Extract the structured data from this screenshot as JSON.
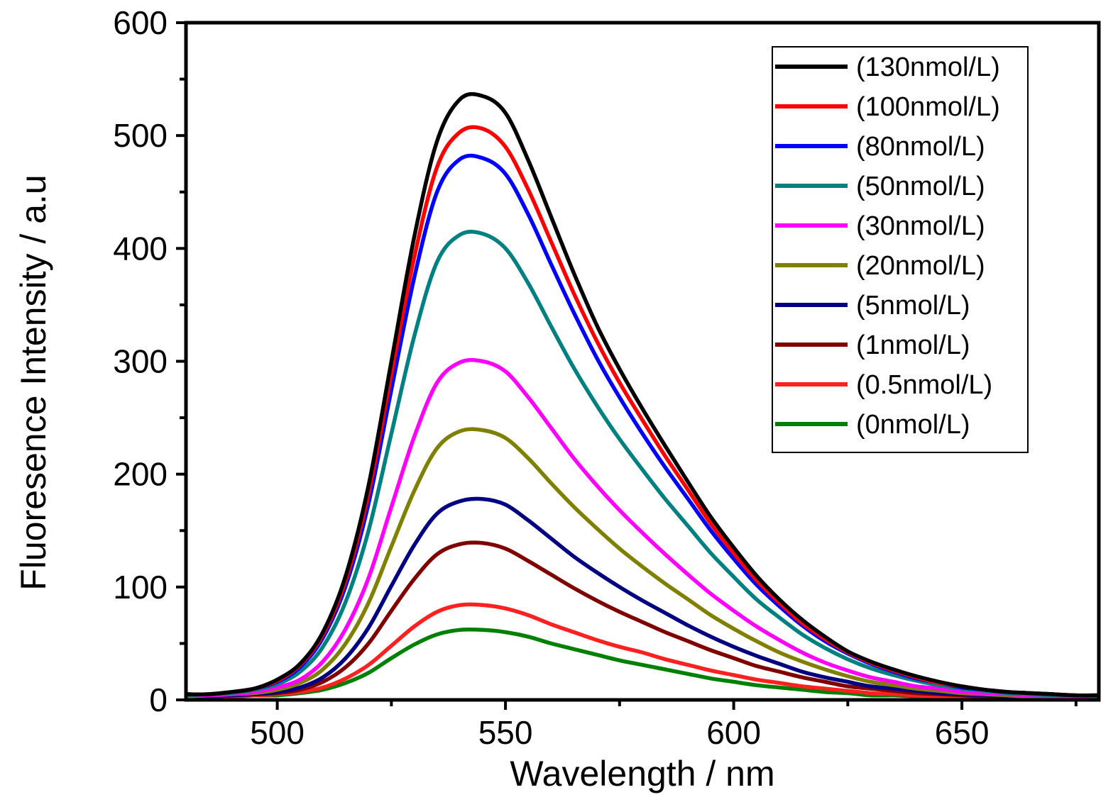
{
  "chart_data": {
    "type": "line",
    "title": "",
    "xlabel": "Wavelength / nm",
    "ylabel": "Fluoresence Intensity / a.u",
    "xlim": [
      480,
      680
    ],
    "ylim": [
      0,
      600
    ],
    "xticks": [
      500,
      550,
      600,
      650
    ],
    "xtick_labels": [
      "500",
      "550",
      "600",
      "650"
    ],
    "yticks": [
      0,
      100,
      200,
      300,
      400,
      500,
      600
    ],
    "ytick_labels": [
      "0",
      "100",
      "200",
      "300",
      "400",
      "500",
      "600"
    ],
    "grid": false,
    "legend_position": "top-right",
    "x": [
      480,
      485,
      490,
      495,
      500,
      505,
      510,
      515,
      520,
      525,
      530,
      535,
      540,
      545,
      550,
      555,
      560,
      565,
      570,
      575,
      580,
      585,
      590,
      595,
      600,
      605,
      610,
      615,
      620,
      625,
      630,
      635,
      640,
      645,
      650,
      655,
      660,
      665,
      670,
      675,
      680
    ],
    "series": [
      {
        "name": "(130nmol/L)",
        "color": "#000000",
        "values": [
          5,
          5,
          7,
          10,
          18,
          32,
          60,
          110,
          190,
          300,
          410,
          495,
          532,
          535,
          520,
          478,
          428,
          378,
          332,
          293,
          258,
          225,
          193,
          162,
          135,
          110,
          89,
          71,
          56,
          43,
          34,
          27,
          21,
          16,
          12,
          9,
          7,
          6,
          5,
          4,
          4
        ]
      },
      {
        "name": "(100nmol/L)",
        "color": "#ff0000",
        "values": [
          5,
          5,
          7,
          10,
          17,
          31,
          58,
          106,
          183,
          289,
          392,
          472,
          503,
          506,
          490,
          452,
          406,
          360,
          318,
          281,
          248,
          216,
          186,
          156,
          130,
          106,
          86,
          68,
          54,
          42,
          33,
          26,
          20,
          15,
          12,
          9,
          7,
          6,
          5,
          4,
          4
        ]
      },
      {
        "name": "(80nmol/L)",
        "color": "#0000ff",
        "values": [
          5,
          5,
          7,
          10,
          16,
          29,
          55,
          101,
          174,
          275,
          374,
          450,
          479,
          480,
          466,
          430,
          386,
          343,
          303,
          268,
          236,
          206,
          178,
          150,
          125,
          102,
          83,
          66,
          52,
          41,
          32,
          25,
          19,
          15,
          11,
          9,
          7,
          6,
          5,
          4,
          4
        ]
      },
      {
        "name": "(50nmol/L)",
        "color": "#008080",
        "values": [
          4,
          5,
          6,
          9,
          14,
          25,
          47,
          87,
          150,
          236,
          322,
          388,
          412,
          413,
          400,
          369,
          331,
          294,
          261,
          231,
          204,
          178,
          154,
          130,
          109,
          89,
          73,
          58,
          46,
          36,
          28,
          22,
          17,
          13,
          10,
          8,
          6,
          5,
          4,
          4,
          3
        ]
      },
      {
        "name": "(30nmol/L)",
        "color": "#ff00ff",
        "values": [
          4,
          4,
          5,
          7,
          11,
          18,
          34,
          63,
          108,
          171,
          233,
          281,
          299,
          300,
          291,
          268,
          241,
          214,
          190,
          168,
          148,
          129,
          111,
          94,
          79,
          65,
          53,
          42,
          33,
          26,
          20,
          16,
          12,
          10,
          7,
          6,
          5,
          4,
          3,
          3,
          3
        ]
      },
      {
        "name": "(20nmol/L)",
        "color": "#808000",
        "values": [
          3,
          4,
          5,
          6,
          9,
          15,
          27,
          50,
          86,
          136,
          185,
          223,
          238,
          239,
          232,
          214,
          192,
          171,
          152,
          134,
          118,
          103,
          89,
          75,
          63,
          52,
          42,
          34,
          27,
          21,
          16,
          13,
          10,
          8,
          6,
          5,
          4,
          3,
          3,
          2,
          2
        ]
      },
      {
        "name": "(5nmol/L)",
        "color": "#000080",
        "values": [
          3,
          3,
          4,
          5,
          7,
          11,
          20,
          37,
          64,
          101,
          137,
          165,
          176,
          178,
          173,
          159,
          143,
          127,
          113,
          100,
          88,
          77,
          66,
          56,
          47,
          39,
          32,
          25,
          20,
          16,
          12,
          10,
          8,
          6,
          5,
          4,
          3,
          3,
          2,
          2,
          2
        ]
      },
      {
        "name": "(1nmol/L)",
        "color": "#800000",
        "values": [
          3,
          3,
          4,
          5,
          6,
          9,
          16,
          29,
          50,
          79,
          107,
          129,
          138,
          139,
          134,
          123,
          111,
          99,
          88,
          78,
          69,
          60,
          52,
          44,
          37,
          30,
          25,
          20,
          16,
          12,
          10,
          8,
          6,
          5,
          4,
          3,
          3,
          2,
          2,
          2,
          2
        ]
      },
      {
        "name": "(0.5nmol/L)",
        "color": "#ff2020",
        "values": [
          3,
          3,
          3,
          4,
          5,
          7,
          11,
          19,
          31,
          48,
          65,
          78,
          84,
          84,
          81,
          75,
          67,
          60,
          53,
          47,
          42,
          36,
          31,
          26,
          22,
          18,
          15,
          12,
          10,
          8,
          6,
          5,
          4,
          3,
          3,
          2,
          2,
          2,
          2,
          2,
          2
        ]
      },
      {
        "name": "(0nmol/L)",
        "color": "#008000",
        "values": [
          2,
          3,
          3,
          4,
          4,
          6,
          9,
          15,
          24,
          37,
          49,
          58,
          62,
          62,
          60,
          56,
          50,
          45,
          40,
          35,
          31,
          27,
          23,
          19,
          16,
          13,
          11,
          9,
          7,
          6,
          4,
          4,
          3,
          2,
          2,
          2,
          2,
          1,
          1,
          1,
          1
        ]
      }
    ]
  }
}
